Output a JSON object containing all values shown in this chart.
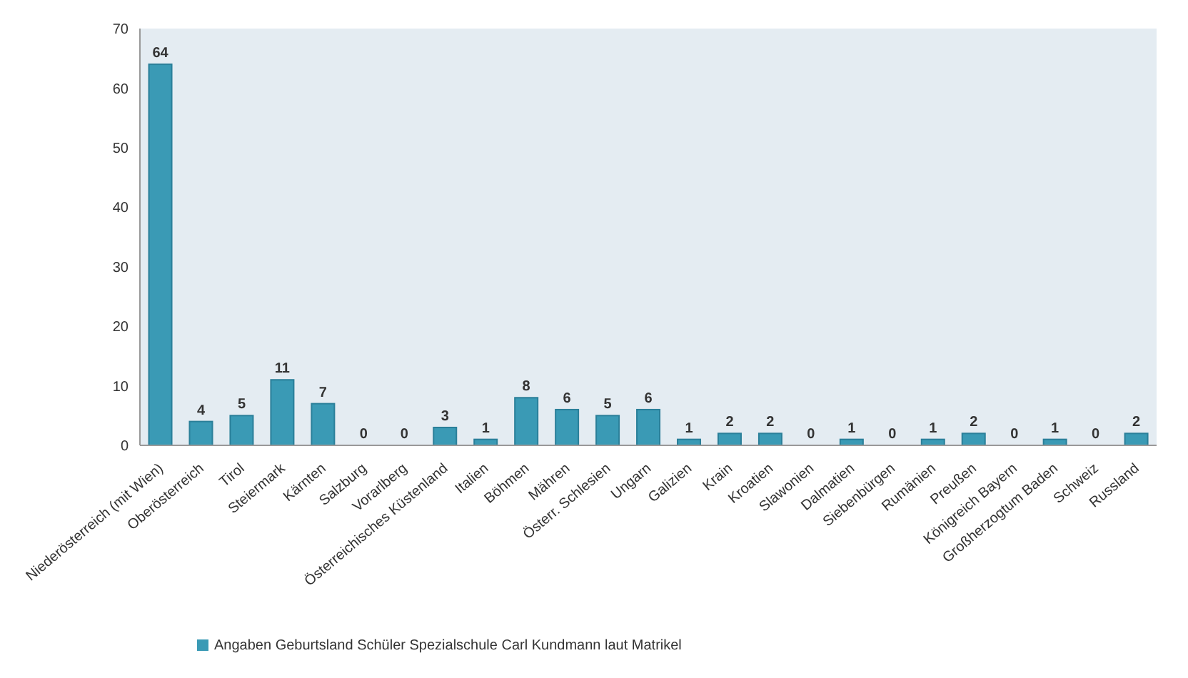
{
  "chart_data": {
    "type": "bar",
    "categories": [
      "Niederösterreich (mit Wien)",
      "Oberösterreich",
      "Tirol",
      "Steiermark",
      "Kärnten",
      "Salzburg",
      "Vorarlberg",
      "Österreichisches Küstenland",
      "Italien",
      "Böhmen",
      "Mähren",
      "Österr. Schlesien",
      "Ungarn",
      "Galizien",
      "Krain",
      "Kroatien",
      "Slawonien",
      "Dalmatien",
      "Siebenbürgen",
      "Rumänien",
      "Preußen",
      "Königreich Bayern",
      "Großherzogtum Baden",
      "Schweiz",
      "Russland"
    ],
    "series": [
      {
        "name": "Angaben Geburtsland Schüler Spezialschule Carl Kundmann laut Matrikel",
        "color": "#3a9ab5",
        "values": [
          64,
          4,
          5,
          11,
          7,
          0,
          0,
          3,
          1,
          8,
          6,
          5,
          6,
          1,
          2,
          2,
          0,
          1,
          0,
          1,
          2,
          0,
          1,
          0,
          2
        ]
      }
    ],
    "ylim": [
      0,
      70
    ],
    "yticks": [
      0,
      10,
      20,
      30,
      40,
      50,
      60,
      70
    ],
    "data_labels": true,
    "legend": "bottom left",
    "grid": false
  }
}
